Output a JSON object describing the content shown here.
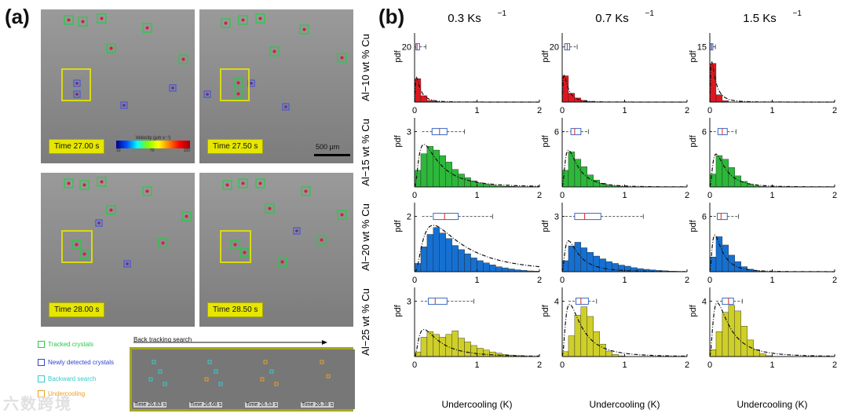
{
  "panel_a": {
    "label": "(a)",
    "frames": [
      {
        "time": "Time 27.00 s"
      },
      {
        "time": "Time 27.50 s"
      },
      {
        "time": "Time 28.00 s"
      },
      {
        "time": "Time 28.50 s"
      }
    ],
    "colorbar": {
      "title": "Velocity (μm s⁻¹)",
      "ticks": [
        "10",
        "70",
        "150"
      ]
    },
    "scalebar": "500 μm",
    "legend": [
      {
        "label": "Tracked crystals",
        "color": "#22cc44"
      },
      {
        "label": "Newly detected crystals",
        "color": "#3344cc"
      },
      {
        "label": "Backward search",
        "color": "#33cccc"
      },
      {
        "label": "Undercooling",
        "color": "#e8a020"
      }
    ],
    "back_tracking": {
      "title": "Back tracking search",
      "times": [
        "Time 26.83 s",
        "Time 26.68 s",
        "Time 26.53 s",
        "Time 26.38 s"
      ]
    }
  },
  "panel_b": {
    "label": "(b)"
  },
  "chart_data": {
    "type": "bar",
    "title": "",
    "xlabel": "Undercooling (K)",
    "ylabel": "pdf",
    "xlim": [
      0,
      2
    ],
    "x_ticks": [
      "0",
      "1",
      "2"
    ],
    "bin_width": 0.1,
    "columns": [
      "0.3 Ks",
      "0.7 Ks",
      "1.5 Ks"
    ],
    "column_exponent": "−1",
    "rows": [
      {
        "label": "Al−10 wt % Cu",
        "color": "#e0161f"
      },
      {
        "label": "Al−15 wt % Cu",
        "color": "#2db83a"
      },
      {
        "label": "Al−20 wt % Cu",
        "color": "#1570d2"
      },
      {
        "label": "Al−25 wt % Cu",
        "color": "#cfcf2a"
      }
    ],
    "subplots": [
      {
        "row": 0,
        "col": 0,
        "ymax": 25,
        "ytick": "20",
        "bars": [
          8.5,
          2.3,
          0.6,
          0.2
        ],
        "curve": {
          "peak": 0.03,
          "scale": 1.0,
          "tail": 0.08
        },
        "box": [
          0.0,
          0.02,
          0.04,
          0.08,
          0.18
        ]
      },
      {
        "row": 0,
        "col": 1,
        "ymax": 25,
        "ytick": "20",
        "bars": [
          9.5,
          3.2,
          1.5,
          0.6,
          0.2
        ],
        "curve": {
          "peak": 0.03,
          "scale": 1.0,
          "tail": 0.12
        },
        "box": [
          0.0,
          0.04,
          0.08,
          0.12,
          0.24
        ]
      },
      {
        "row": 0,
        "col": 2,
        "ymax": 18.75,
        "ytick": "15",
        "bars": [
          10.5,
          2.0,
          0.4
        ],
        "curve": {
          "peak": 0.03,
          "scale": 1.0,
          "tail": 0.06
        },
        "box": [
          0.0,
          0.01,
          0.03,
          0.05,
          0.09
        ]
      },
      {
        "row": 1,
        "col": 0,
        "ymax": 3.75,
        "ytick": "3",
        "bars": [
          0.9,
          1.8,
          2.2,
          2.0,
          1.7,
          1.35,
          0.95,
          0.7,
          0.5,
          0.33,
          0.22,
          0.15,
          0.1,
          0.06,
          0.04,
          0.03,
          0.02,
          0.01
        ],
        "curve": {
          "peak": 0.15,
          "scale": 0.9,
          "tail": 0.35
        },
        "box": [
          0.12,
          0.28,
          0.4,
          0.52,
          0.8
        ]
      },
      {
        "row": 1,
        "col": 1,
        "ymax": 7.5,
        "ytick": "6",
        "bars": [
          1.8,
          3.8,
          3.0,
          2.2,
          1.3,
          0.75,
          0.4,
          0.22,
          0.1,
          0.05,
          0.02
        ],
        "curve": {
          "peak": 0.1,
          "scale": 0.85,
          "tail": 0.2
        },
        "box": [
          0.06,
          0.14,
          0.2,
          0.3,
          0.42
        ]
      },
      {
        "row": 1,
        "col": 2,
        "ymax": 7.5,
        "ytick": "6",
        "bars": [
          1.4,
          3.4,
          3.0,
          2.1,
          1.2,
          0.6,
          0.3,
          0.12,
          0.05,
          0.02
        ],
        "curve": {
          "peak": 0.1,
          "scale": 0.85,
          "tail": 0.2
        },
        "box": [
          0.06,
          0.13,
          0.2,
          0.28,
          0.42
        ]
      },
      {
        "row": 2,
        "col": 0,
        "ymax": 2.5,
        "ytick": "2",
        "bars": [
          0.3,
          0.9,
          1.35,
          1.6,
          1.4,
          1.2,
          0.95,
          0.8,
          0.65,
          0.5,
          0.4,
          0.32,
          0.25,
          0.18,
          0.14,
          0.1,
          0.07,
          0.05,
          0.03,
          0.02
        ],
        "curve": {
          "peak": 0.3,
          "scale": 0.9,
          "tail": 0.5
        },
        "box": [
          0.12,
          0.3,
          0.48,
          0.7,
          1.25
        ]
      },
      {
        "row": 2,
        "col": 1,
        "ymax": 3.75,
        "ytick": "3",
        "bars": [
          0.6,
          1.4,
          1.6,
          1.3,
          1.05,
          0.85,
          0.7,
          0.55,
          0.45,
          0.36,
          0.3,
          0.22,
          0.17,
          0.13,
          0.1,
          0.07,
          0.05,
          0.03,
          0.02,
          0.01
        ],
        "curve": {
          "peak": 0.1,
          "scale": 0.9,
          "tail": 0.5
        },
        "box": [
          0.05,
          0.2,
          0.36,
          0.62,
          1.3
        ]
      },
      {
        "row": 2,
        "col": 2,
        "ymax": 7.5,
        "ytick": "6",
        "bars": [
          1.6,
          3.8,
          2.9,
          1.8,
          1.1,
          0.55,
          0.28,
          0.12,
          0.05,
          0.02
        ],
        "curve": {
          "peak": 0.08,
          "scale": 0.85,
          "tail": 0.2
        },
        "box": [
          0.06,
          0.12,
          0.18,
          0.28,
          0.46
        ]
      },
      {
        "row": 3,
        "col": 0,
        "ymax": 3.75,
        "ytick": "3",
        "bars": [
          0.25,
          1.05,
          1.35,
          1.2,
          1.05,
          1.2,
          1.4,
          1.0,
          0.8,
          0.6,
          0.45,
          0.35,
          0.25,
          0.18,
          0.12,
          0.08,
          0.05,
          0.03
        ],
        "curve": {
          "peak": 0.15,
          "scale": 0.9,
          "tail": 0.4
        },
        "box": [
          0.1,
          0.22,
          0.33,
          0.52,
          0.95
        ]
      },
      {
        "row": 3,
        "col": 1,
        "ymax": 5,
        "ytick": "4",
        "bars": [
          0.35,
          1.5,
          3.0,
          3.6,
          2.9,
          1.8,
          0.9,
          0.4,
          0.15,
          0.05
        ],
        "curve": {
          "peak": 0.12,
          "scale": 0.9,
          "tail": 0.3
        },
        "box": [
          0.1,
          0.22,
          0.3,
          0.42,
          0.55
        ]
      },
      {
        "row": 3,
        "col": 2,
        "ymax": 5,
        "ytick": "4",
        "bars": [
          0.5,
          1.8,
          3.2,
          3.7,
          3.3,
          2.2,
          1.2,
          0.5,
          0.2,
          0.06
        ],
        "curve": {
          "peak": 0.12,
          "scale": 0.9,
          "tail": 0.3
        },
        "box": [
          0.1,
          0.2,
          0.3,
          0.38,
          0.52
        ]
      }
    ]
  },
  "watermark": "六数跨境"
}
